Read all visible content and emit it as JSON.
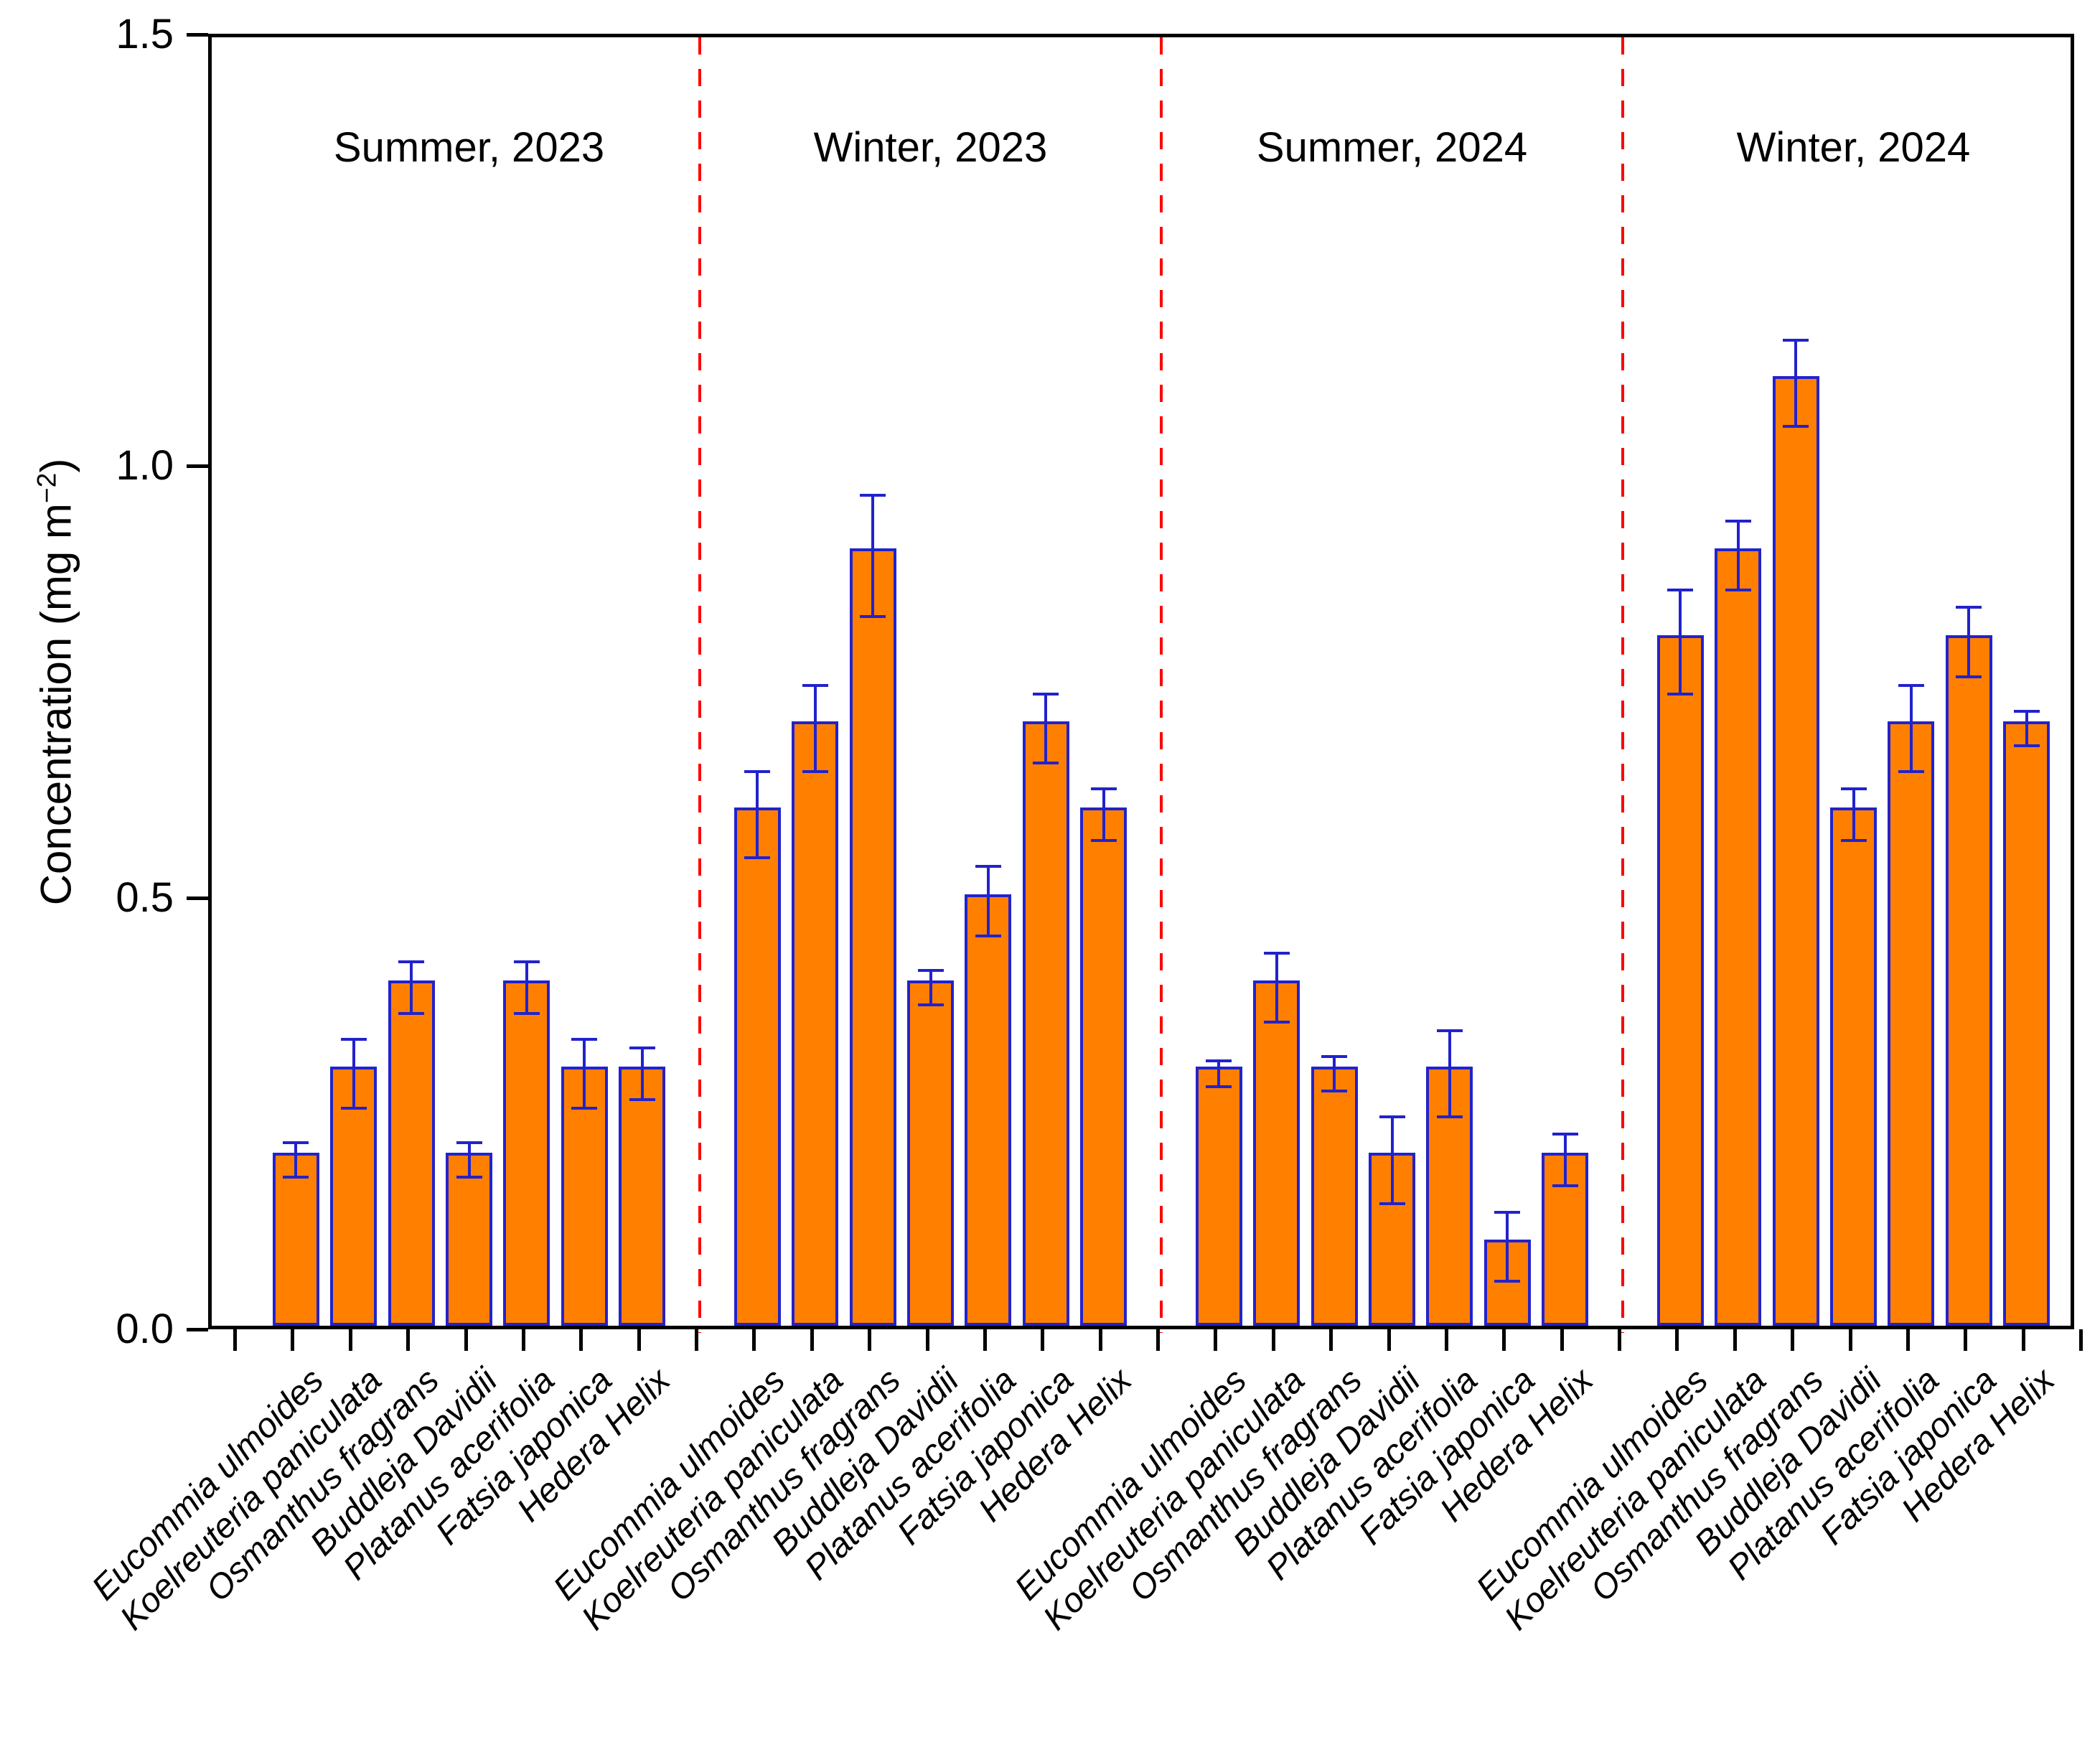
{
  "page": {
    "background": "#ffffff"
  },
  "chart_data": {
    "type": "bar",
    "title": "",
    "xlabel": "",
    "ylabel": {
      "main": "Concentration (mg m",
      "sup": "−2",
      "end": ")"
    },
    "ylim": [
      0,
      1.5
    ],
    "ytick_labels": [
      "0.0",
      "0.5",
      "1.0",
      "1.5"
    ],
    "ytick_values": [
      0,
      0.5,
      1.0,
      1.5
    ],
    "grid": "off",
    "legend": "none",
    "error_bars": "symmetric, blue, with caps",
    "categories": [
      "Eucommia ulmoides",
      "Koelreuteria paniculata",
      "Osmanthus fragrans",
      "Buddleja Davidii",
      "Platanus acerifolia",
      "Fatsia japonica",
      "Hedera Helix"
    ],
    "groups": [
      {
        "label": "Summer, 2023",
        "values": [
          0.2,
          0.3,
          0.4,
          0.2,
          0.4,
          0.3,
          0.3
        ],
        "errors": [
          0.02,
          0.04,
          0.03,
          0.02,
          0.03,
          0.04,
          0.03
        ]
      },
      {
        "label": "Winter, 2023",
        "values": [
          0.6,
          0.7,
          0.9,
          0.4,
          0.5,
          0.7,
          0.6
        ],
        "errors": [
          0.05,
          0.05,
          0.07,
          0.02,
          0.04,
          0.04,
          0.03
        ]
      },
      {
        "label": "Summer, 2024",
        "values": [
          0.3,
          0.4,
          0.3,
          0.2,
          0.3,
          0.1,
          0.2
        ],
        "errors": [
          0.015,
          0.04,
          0.02,
          0.05,
          0.05,
          0.04,
          0.03
        ]
      },
      {
        "label": "Winter, 2024",
        "values": [
          0.8,
          0.9,
          1.1,
          0.6,
          0.7,
          0.8,
          0.7
        ],
        "errors": [
          0.06,
          0.04,
          0.05,
          0.03,
          0.05,
          0.04,
          0.02
        ]
      }
    ],
    "colors": {
      "bar_fill": "#FF8000",
      "bar_edge": "#2222CC",
      "error_bar": "#2222CC",
      "divider": "#FF0000",
      "axis": "#000000",
      "text": "#000000"
    }
  }
}
